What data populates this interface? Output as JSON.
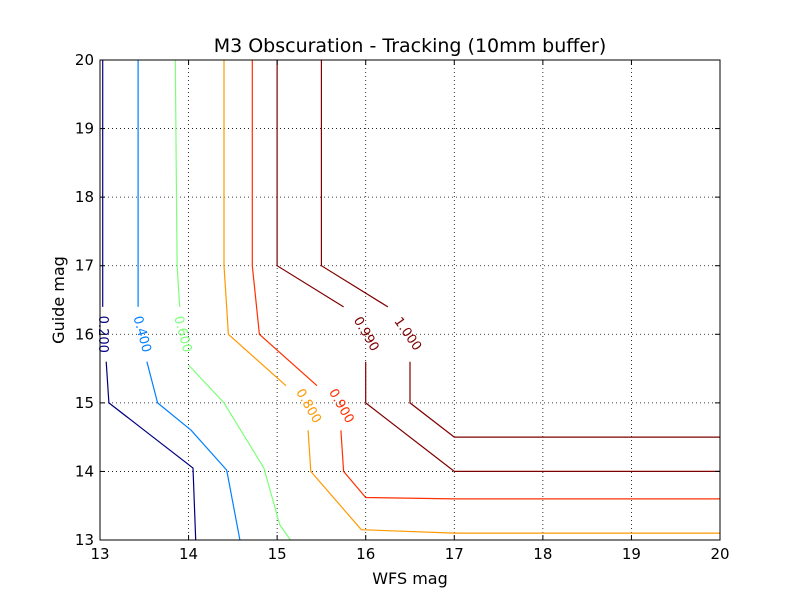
{
  "chart_data": {
    "type": "line",
    "title": "M3 Obscuration - Tracking (10mm buffer)",
    "xlabel": "WFS mag",
    "ylabel": "Guide mag",
    "xlim": [
      13,
      20
    ],
    "ylim": [
      13,
      20
    ],
    "xticks": [
      "13",
      "14",
      "15",
      "16",
      "17",
      "18",
      "19",
      "20"
    ],
    "yticks": [
      "13",
      "14",
      "15",
      "16",
      "17",
      "18",
      "19",
      "20"
    ],
    "grid": true,
    "series": [
      {
        "name": "0.200",
        "color": "#00007f",
        "points": [
          [
            13.03,
            20
          ],
          [
            13.03,
            16.4
          ]
        ],
        "points2": [
          [
            13.07,
            15.6
          ],
          [
            13.1,
            15.0
          ],
          [
            13.5,
            14.6
          ],
          [
            14.05,
            14.05
          ],
          [
            14.08,
            13.0
          ]
        ],
        "label_at": [
          13.03,
          16.0
        ],
        "label_rot": 90
      },
      {
        "name": "0.400",
        "color": "#0080ff",
        "points": [
          [
            13.43,
            20
          ],
          [
            13.43,
            16.4
          ]
        ],
        "points2": [
          [
            13.53,
            15.6
          ],
          [
            13.65,
            15.0
          ],
          [
            14.03,
            14.6
          ],
          [
            14.43,
            14.02
          ],
          [
            14.58,
            13.0
          ]
        ],
        "label_at": [
          13.47,
          16.0
        ],
        "label_rot": 75
      },
      {
        "name": "0.600",
        "color": "#7dff7a",
        "points": [
          [
            13.85,
            20
          ],
          [
            13.87,
            17.0
          ],
          [
            13.9,
            16.4
          ]
        ],
        "points2": [
          [
            14.0,
            15.55
          ],
          [
            14.4,
            15.0
          ],
          [
            14.85,
            14.05
          ],
          [
            15.03,
            13.22
          ],
          [
            15.15,
            13.0
          ]
        ],
        "label_at": [
          13.93,
          16.0
        ],
        "label_rot": 75
      },
      {
        "name": "0.800",
        "color": "#ff9900",
        "points": [
          [
            14.4,
            20
          ],
          [
            14.4,
            17.0
          ],
          [
            14.45,
            16.0
          ],
          [
            15.1,
            15.25
          ]
        ],
        "points2": [
          [
            15.35,
            14.6
          ],
          [
            15.38,
            14.0
          ],
          [
            15.95,
            13.15
          ],
          [
            17.0,
            13.1
          ],
          [
            20,
            13.1
          ]
        ],
        "label_at": [
          15.35,
          14.95
        ],
        "label_rot": 60
      },
      {
        "name": "0.900",
        "color": "#ff3000",
        "points": [
          [
            14.72,
            20
          ],
          [
            14.72,
            17.0
          ],
          [
            14.8,
            16.0
          ],
          [
            15.45,
            15.25
          ]
        ],
        "points2": [
          [
            15.72,
            14.6
          ],
          [
            15.75,
            14.0
          ],
          [
            16.0,
            13.62
          ],
          [
            17.0,
            13.6
          ],
          [
            20,
            13.6
          ]
        ],
        "label_at": [
          15.72,
          14.95
        ],
        "label_rot": 60
      },
      {
        "name": "0.990",
        "color": "#7f0000",
        "points": [
          [
            15.0,
            20
          ],
          [
            15.0,
            17.0
          ],
          [
            15.75,
            16.4
          ]
        ],
        "points2": [
          [
            16.0,
            15.6
          ],
          [
            16.0,
            15.0
          ],
          [
            17.0,
            14.0
          ],
          [
            20,
            14.0
          ]
        ],
        "label_at": [
          16.0,
          16.0
        ],
        "label_rot": 60
      },
      {
        "name": "1.000",
        "color": "#7f0000",
        "points": [
          [
            15.5,
            20
          ],
          [
            15.5,
            17.0
          ],
          [
            16.25,
            16.4
          ]
        ],
        "points2": [
          [
            16.5,
            15.6
          ],
          [
            16.5,
            15.0
          ],
          [
            17.0,
            14.5
          ],
          [
            20,
            14.5
          ]
        ],
        "label_at": [
          16.47,
          16.0
        ],
        "label_rot": 55
      }
    ]
  }
}
